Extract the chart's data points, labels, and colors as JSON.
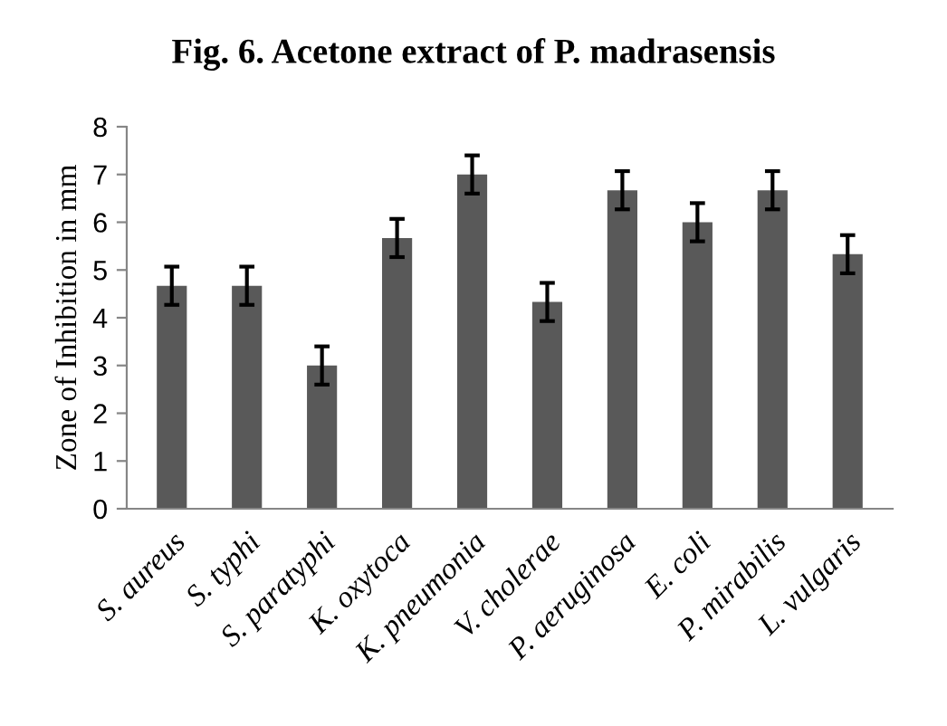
{
  "chart_data": {
    "type": "bar",
    "title": "Fig. 6. Acetone extract of P. madrasensis",
    "ylabel": "Zone of Inhibition in mm",
    "categories": [
      "S. aureus",
      "S. typhi",
      "S. paratyphi",
      "K. oxytoca",
      "K. pneumonia",
      "V. cholerae",
      "P. aeruginosa",
      "E. coli",
      "P. mirabilis",
      "L. vulgaris"
    ],
    "values": [
      4.67,
      4.67,
      3.0,
      5.67,
      7.0,
      4.33,
      6.67,
      6.0,
      6.67,
      5.33
    ],
    "errors": [
      0.4,
      0.4,
      0.4,
      0.4,
      0.4,
      0.4,
      0.4,
      0.4,
      0.4,
      0.4
    ],
    "color": "#595959",
    "ylim": [
      0,
      8
    ],
    "yticks": [
      0,
      1,
      2,
      3,
      4,
      5,
      6,
      7,
      8
    ],
    "grid": false
  }
}
